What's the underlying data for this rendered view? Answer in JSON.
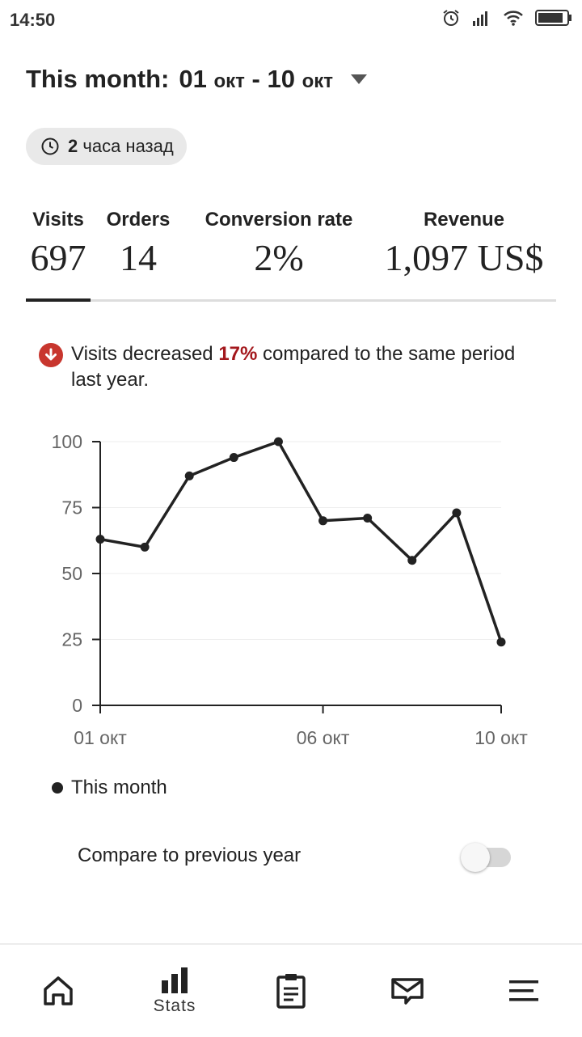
{
  "status_bar": {
    "time": "14:50"
  },
  "period": {
    "prefix": "This month:",
    "start_num": "01",
    "start_mon": "окт",
    "dash": "-",
    "end_num": "10",
    "end_mon": "окт"
  },
  "updated": {
    "bold": "2",
    "text": "часа назад"
  },
  "metrics": [
    {
      "label": "Visits",
      "value": "697"
    },
    {
      "label": "Orders",
      "value": "14"
    },
    {
      "label": "Conversion rate",
      "value": "2%"
    },
    {
      "label": "Revenue",
      "value": "1,097 US$"
    }
  ],
  "notice": {
    "before": "Visits decreased",
    "percent": "17%",
    "after": "compared to the same period last year."
  },
  "chart_data": {
    "type": "line",
    "x": [
      "01 окт",
      "02 окт",
      "03 окт",
      "04 окт",
      "05 окт",
      "06 окт",
      "07 окт",
      "08 окт",
      "09 окт",
      "10 окт"
    ],
    "series": [
      {
        "name": "This month",
        "values": [
          63,
          60,
          87,
          94,
          100,
          70,
          71,
          55,
          73,
          24
        ],
        "color": "#222222"
      }
    ],
    "y_ticks": [
      "100",
      "75",
      "50",
      "25",
      "0"
    ],
    "x_ticks": [
      "01 окт",
      "06 окт",
      "10 окт"
    ],
    "ylim": [
      0,
      100
    ],
    "grid": true,
    "legend": "bottom-left"
  },
  "compare": {
    "label": "Compare to previous year",
    "enabled": false
  },
  "nav": [
    {
      "icon": "home-icon",
      "label": ""
    },
    {
      "icon": "bar-chart-icon",
      "label": "Stats"
    },
    {
      "icon": "clipboard-icon",
      "label": ""
    },
    {
      "icon": "mail-icon",
      "label": ""
    },
    {
      "icon": "menu-icon",
      "label": ""
    }
  ],
  "colors": {
    "accent_dark": "#222222",
    "alert_red": "#c8362e",
    "percent_red": "#a3171c"
  }
}
